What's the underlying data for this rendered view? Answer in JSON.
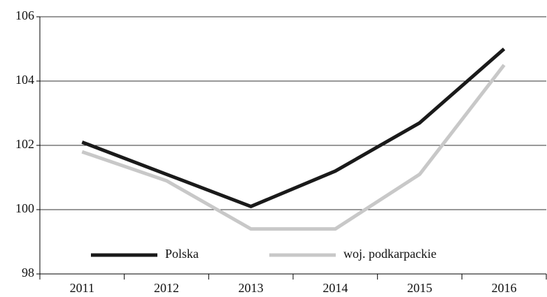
{
  "chart_data": {
    "type": "line",
    "categories": [
      "2011",
      "2012",
      "2013",
      "2014",
      "2015",
      "2016"
    ],
    "series": [
      {
        "name": "Polska",
        "color": "#1a1a1a",
        "values": [
          102.1,
          101.1,
          100.1,
          101.2,
          102.7,
          105.0
        ]
      },
      {
        "name": "woj. podkarpackie",
        "color": "#c8c8c8",
        "values": [
          101.8,
          100.9,
          99.4,
          99.4,
          101.1,
          104.5
        ]
      }
    ],
    "ylim": [
      98,
      106
    ],
    "yticks": [
      98,
      100,
      102,
      104,
      106
    ],
    "grid": true,
    "legend": "bottom"
  }
}
